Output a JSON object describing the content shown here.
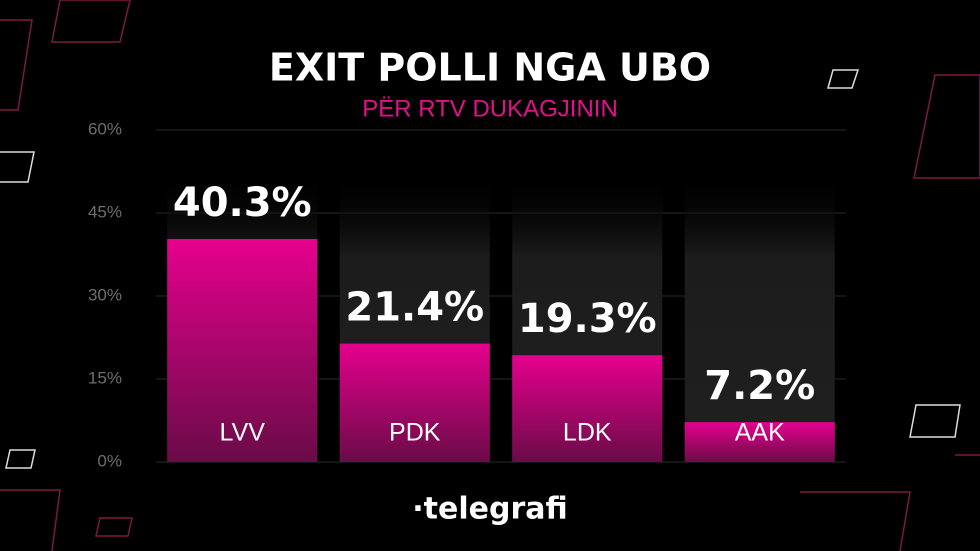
{
  "chart_data": {
    "type": "bar",
    "title": "EXIT POLLI NGA UBO",
    "subtitle": "PËR RTV DUKAGJININ",
    "brand": "·telegrafi",
    "categories": [
      "LVV",
      "PDK",
      "LDK",
      "AAK"
    ],
    "values": [
      40.3,
      21.4,
      19.3,
      7.2
    ],
    "value_labels": [
      "40.3%",
      "21.4%",
      "19.3%",
      "7.2%"
    ],
    "color": "#e6008e",
    "ylim": [
      0,
      60
    ],
    "yticks": [
      {
        "value": 0,
        "label": "0%"
      },
      {
        "value": 15,
        "label": "15%"
      },
      {
        "value": 30,
        "label": "30%"
      },
      {
        "value": 45,
        "label": "45%"
      },
      {
        "value": 60,
        "label": "60%"
      }
    ],
    "grid": true
  }
}
